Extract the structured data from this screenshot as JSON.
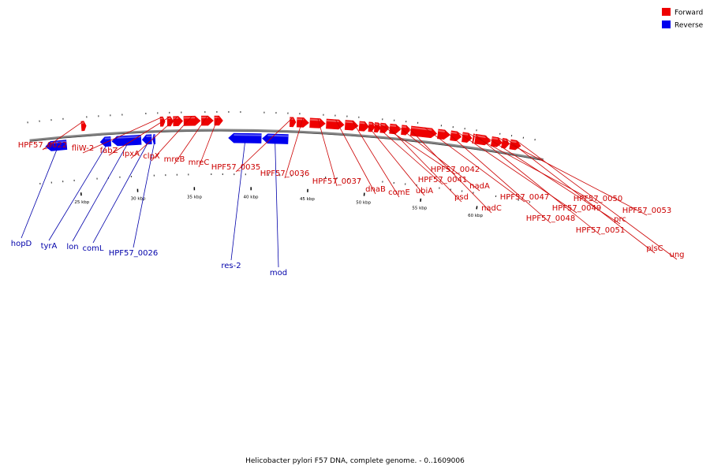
{
  "caption": "Helicobacter pylori F57 DNA, complete genome. - 0..1609006",
  "legend": [
    {
      "label": "Forward",
      "color": "#ee0000"
    },
    {
      "label": "Reverse",
      "color": "#0000ee"
    }
  ],
  "colors": {
    "forward": "#ee0000",
    "reverse": "#0000ee",
    "forward_label": "#cc0000",
    "reverse_label": "#0000aa",
    "backbone": "#888888"
  },
  "major_ticks": [
    {
      "kbp": 25,
      "label": "25 kbp"
    },
    {
      "kbp": 30,
      "label": "30 kbp"
    },
    {
      "kbp": 35,
      "label": "35 kbp"
    },
    {
      "kbp": 40,
      "label": "40 kbp"
    },
    {
      "kbp": 45,
      "label": "45 kbp"
    },
    {
      "kbp": 50,
      "label": "50 kbp"
    },
    {
      "kbp": 55,
      "label": "55 kbp"
    },
    {
      "kbp": 60,
      "label": "60 kbp"
    }
  ],
  "genes": [
    {
      "name": "hopD",
      "strand": "reverse",
      "start": 22.3,
      "end": 24.1
    },
    {
      "name": "HPF57_0022",
      "strand": "forward",
      "start": 25.5,
      "end": 25.9
    },
    {
      "name": "tyrA",
      "strand": "reverse",
      "start": 27.0,
      "end": 27.9
    },
    {
      "name": "lon",
      "strand": "reverse",
      "start": 28.0,
      "end": 30.5
    },
    {
      "name": "comL",
      "strand": "reverse",
      "start": 30.6,
      "end": 31.4
    },
    {
      "name": "HPF57_0026",
      "strand": "reverse",
      "start": 31.5,
      "end": 31.7
    },
    {
      "name": "fliW-2",
      "strand": "forward",
      "start": 32.2,
      "end": 32.6
    },
    {
      "name": "fabZ",
      "strand": "forward",
      "start": 32.8,
      "end": 33.3
    },
    {
      "name": "lpxA",
      "strand": "forward",
      "start": 33.3,
      "end": 34.1
    },
    {
      "name": "clpX",
      "strand": "forward",
      "start": 34.2,
      "end": 35.6
    },
    {
      "name": "mreB",
      "strand": "forward",
      "start": 35.7,
      "end": 36.7
    },
    {
      "name": "mreC",
      "strand": "forward",
      "start": 36.8,
      "end": 37.5
    },
    {
      "name": "res-2",
      "strand": "reverse",
      "start": 38.0,
      "end": 40.8
    },
    {
      "name": "mod",
      "strand": "reverse",
      "start": 40.9,
      "end": 43.1
    },
    {
      "name": "HPF57_0035",
      "strand": "forward",
      "start": 43.2,
      "end": 43.7
    },
    {
      "name": "HPF57_0036",
      "strand": "forward",
      "start": 43.8,
      "end": 44.8
    },
    {
      "name": "HPF57_0037",
      "strand": "forward",
      "start": 44.9,
      "end": 46.2
    },
    {
      "name": "dnaB",
      "strand": "forward",
      "start": 46.3,
      "end": 47.8
    },
    {
      "name": "comE",
      "strand": "forward",
      "start": 47.9,
      "end": 49.0
    },
    {
      "name": "ubiA",
      "strand": "forward",
      "start": 49.1,
      "end": 49.9
    },
    {
      "name": "HPF57_0041",
      "strand": "forward",
      "start": 49.9,
      "end": 50.4
    },
    {
      "name": "HPF57_0042",
      "strand": "forward",
      "start": 50.4,
      "end": 50.9
    },
    {
      "name": "psd",
      "strand": "forward",
      "start": 50.9,
      "end": 51.6
    },
    {
      "name": "nadA",
      "strand": "forward",
      "start": 51.7,
      "end": 52.6
    },
    {
      "name": "nadC",
      "strand": "forward",
      "start": 52.7,
      "end": 53.4
    },
    {
      "name": "HPF57_0047",
      "strand": "forward",
      "start": 53.5,
      "end": 55.7
    },
    {
      "name": "HPF57_0048",
      "strand": "forward",
      "start": 55.8,
      "end": 56.8
    },
    {
      "name": "HPF57_0049",
      "strand": "forward",
      "start": 56.9,
      "end": 57.8
    },
    {
      "name": "HPF57_0050",
      "strand": "forward",
      "start": 57.9,
      "end": 58.7
    },
    {
      "name": "HPF57_0051",
      "strand": "forward",
      "start": 58.8,
      "end": 58.9
    },
    {
      "name": "prc",
      "strand": "forward",
      "start": 59.0,
      "end": 60.3
    },
    {
      "name": "HPF57_0053",
      "strand": "forward",
      "start": 60.4,
      "end": 61.3
    },
    {
      "name": "plsC",
      "strand": "forward",
      "start": 61.3,
      "end": 61.9
    },
    {
      "name": "ung",
      "strand": "forward",
      "start": 62.0,
      "end": 62.9
    }
  ]
}
